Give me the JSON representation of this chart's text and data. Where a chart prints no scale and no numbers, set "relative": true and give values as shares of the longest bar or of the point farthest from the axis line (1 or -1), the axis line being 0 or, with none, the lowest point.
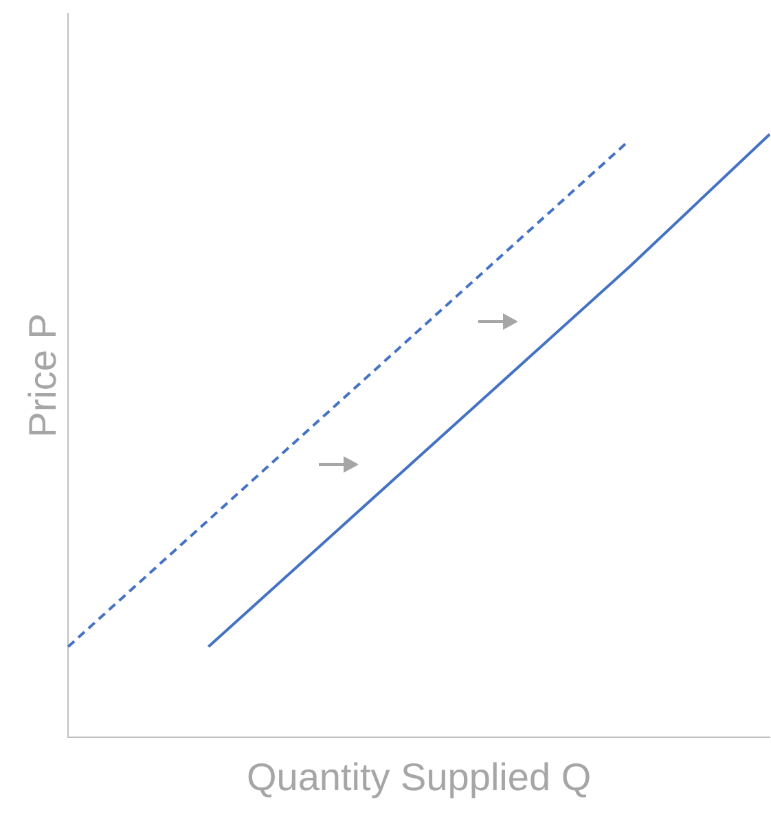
{
  "chart_data": {
    "type": "line",
    "relative": true,
    "xlabel": "Quantity Supplied Q",
    "ylabel": "Price P",
    "categories": [
      null,
      null,
      null,
      null,
      null,
      null
    ],
    "series": [
      {
        "color": "#4472c4",
        "line_style": "dashed",
        "values": [
          0.15,
          0.36,
          0.57,
          0.78,
          0.99,
          null
        ]
      },
      {
        "color": "#4472c4",
        "line_style": "solid",
        "values": [
          null,
          0.15,
          0.36,
          0.57,
          0.78,
          1
        ]
      }
    ],
    "grid": false,
    "legend": false,
    "tick_labels": false,
    "marker": "none"
  }
}
